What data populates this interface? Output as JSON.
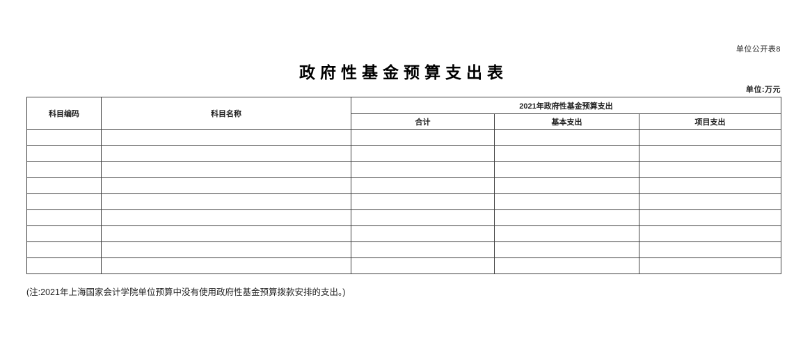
{
  "page": {
    "table_number_label": "单位公开表8",
    "title": "政府性基金预算支出表",
    "unit_label": "单位:万元",
    "footnote": "(注:2021年上海国家会计学院单位预算中没有使用政府性基金预算拨款安排的支出。)"
  },
  "table": {
    "header": {
      "col_code": "科目编码",
      "col_name": "科目名称",
      "group": "2021年政府性基金预算支出",
      "sub_total": "合计",
      "sub_basic": "基本支出",
      "sub_project": "项目支出"
    },
    "rows": [
      [
        "",
        "",
        "",
        "",
        ""
      ],
      [
        "",
        "",
        "",
        "",
        ""
      ],
      [
        "",
        "",
        "",
        "",
        ""
      ],
      [
        "",
        "",
        "",
        "",
        ""
      ],
      [
        "",
        "",
        "",
        "",
        ""
      ],
      [
        "",
        "",
        "",
        "",
        ""
      ],
      [
        "",
        "",
        "",
        "",
        ""
      ],
      [
        "",
        "",
        "",
        "",
        ""
      ],
      [
        "",
        "",
        "",
        "",
        ""
      ]
    ]
  },
  "colors": {
    "border": "#3f3f3f",
    "text": "#1f1f1f",
    "background": "#ffffff"
  }
}
